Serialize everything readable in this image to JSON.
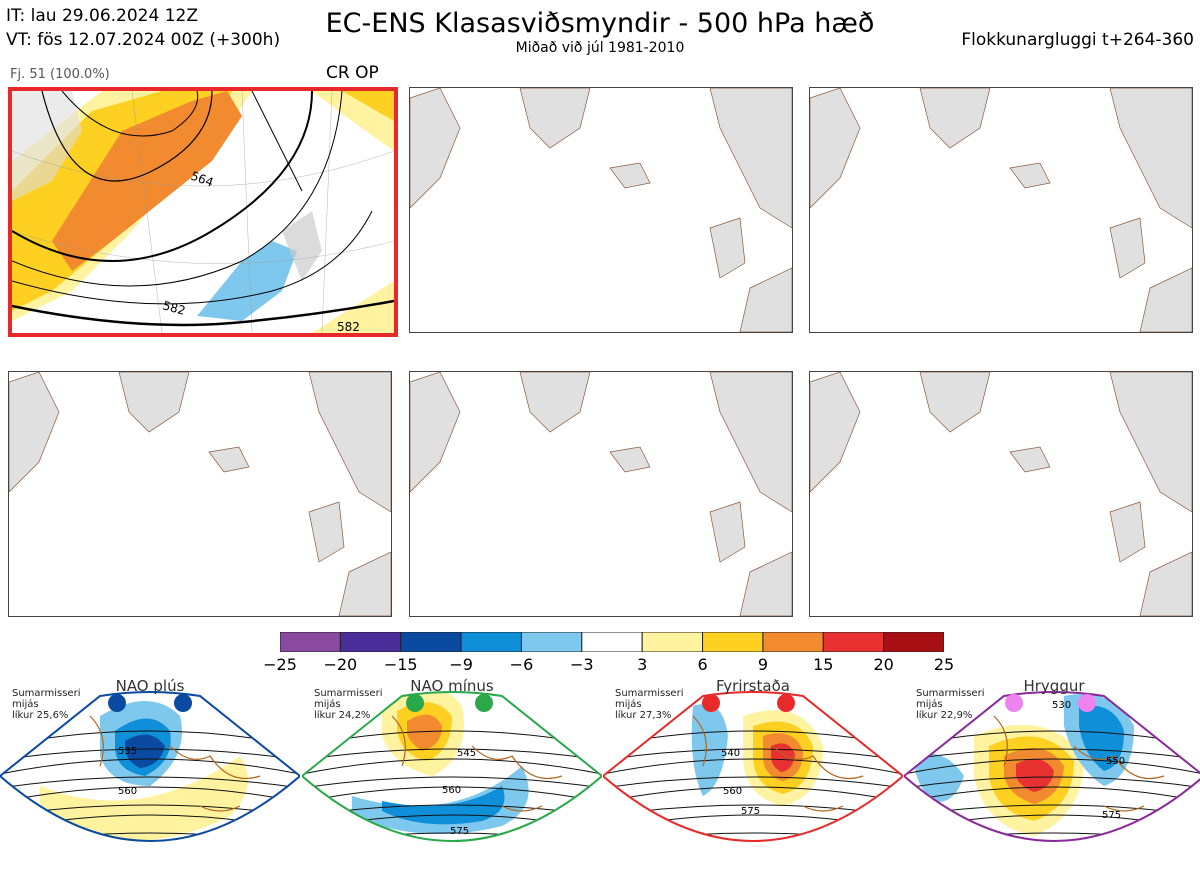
{
  "header": {
    "line1": "IT: lau 29.06.2024 12Z",
    "line2": "VT: fös 12.07.2024 00Z  (+300h)",
    "title": "EC-ENS Klasasviðsmyndir - 500 hPa hæð",
    "subtitle": "Miðað við júl 1981-2010",
    "window": "Flokkunargluggi t+264-360"
  },
  "panels": [
    {
      "label": "Fj. 51 (100.0%)",
      "tag": "CR OP",
      "highlighted": true,
      "contour_labels": [
        "564",
        "582",
        "582"
      ]
    },
    {
      "label": "",
      "tag": ""
    },
    {
      "label": "",
      "tag": ""
    },
    {
      "label": "",
      "tag": ""
    },
    {
      "label": "",
      "tag": ""
    },
    {
      "label": "",
      "tag": ""
    }
  ],
  "colorbar": {
    "ticks": [
      "−25",
      "−20",
      "−15",
      "−9",
      "−6",
      "−3",
      "3",
      "6",
      "9",
      "15",
      "20",
      "25"
    ],
    "colors": [
      "#8a4aa0",
      "#4a2f9a",
      "#0a4aa0",
      "#0e8fd8",
      "#7ec8ee",
      "#ffffff",
      "#fff3a0",
      "#fdd022",
      "#f28a30",
      "#e83232",
      "#a80f14"
    ]
  },
  "regimes": [
    {
      "name": "NAO plús",
      "season": "Sumarmisseri",
      "mean": "mijás",
      "prob": "líkur 25,6%",
      "color": "#0a4aa0",
      "labels": [
        "535",
        "560"
      ]
    },
    {
      "name": "NAO mínus",
      "season": "Sumarmisseri",
      "mean": "mijás",
      "prob": "líkur 24,2%",
      "color": "#2aa84a",
      "labels": [
        "545",
        "560",
        "575"
      ]
    },
    {
      "name": "Fyrirstaða",
      "season": "Sumarmisseri",
      "mean": "mijás",
      "prob": "líkur 27,3%",
      "color": "#e82a2a",
      "labels": [
        "540",
        "560",
        "575"
      ]
    },
    {
      "name": "Hryggur",
      "season": "Sumarmisseri",
      "mean": "mijás",
      "prob": "líkur 22,9%",
      "color": "#8a2a9a",
      "labels": [
        "530",
        "550",
        "575"
      ]
    }
  ]
}
